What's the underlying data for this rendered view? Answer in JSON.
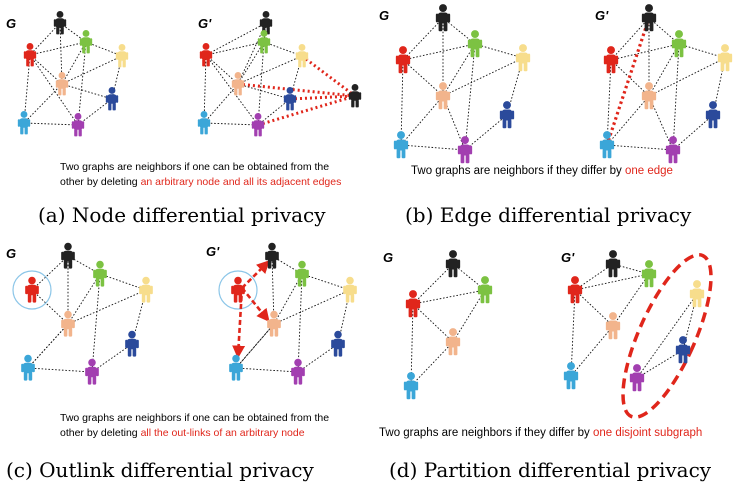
{
  "panels": {
    "a": {
      "graph_label_left": "G",
      "graph_label_right": "G'",
      "desc_line1": "Two graphs are neighbors if one can be obtained from the",
      "desc_line2_plain": "other by deleting ",
      "desc_line2_highlight": "an arbitrary node and all its adjacent edges",
      "caption": "(a) Node differential privacy"
    },
    "b": {
      "graph_label_left": "G",
      "graph_label_right": "G'",
      "desc_plain": "Two graphs are neighbors if they differ by ",
      "desc_highlight": "one edge",
      "caption": "(b) Edge differential privacy"
    },
    "c": {
      "graph_label_left": "G",
      "graph_label_right": "G'",
      "desc_line1": "Two graphs are neighbors if one can be obtained from the",
      "desc_line2_plain": "other by deleting ",
      "desc_line2_highlight": "all the out-links of an arbitrary node",
      "caption": "(c) Outlink differential privacy"
    },
    "d": {
      "graph_label_left": "G",
      "graph_label_right": "G'",
      "desc_plain": "Two graphs are neighbors if they differ by ",
      "desc_highlight": "one disjoint subgraph",
      "caption": "(d) Partition differential privacy"
    }
  },
  "colors": {
    "highlight_red": "#e0261b",
    "person_black": "#222222",
    "person_red": "#e0261b",
    "person_green": "#7cc242",
    "person_yellow": "#f7dd8c",
    "person_orange": "#f2b48c",
    "person_darkblue": "#2b4a9b",
    "person_cyan": "#3ba6d8",
    "person_purple": "#a23fb0",
    "circle_blue": "#8cc6e8"
  },
  "icons": [
    "person-icon"
  ]
}
